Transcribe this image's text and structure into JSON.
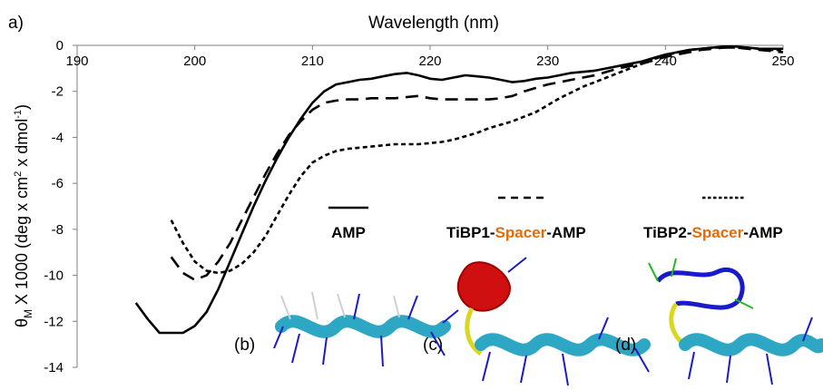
{
  "panel_labels": {
    "main": "a)",
    "b": "(b)",
    "c": "(c)",
    "d": "(d)"
  },
  "colors": {
    "axis": "#7f7f7f",
    "line": "#000000",
    "spacer": "#e36c09",
    "helix": "#2ea7c4",
    "side_chain": "#1a1acc",
    "hydrogen": "#cfcfcf",
    "loop_red": "#d01010",
    "loop_green": "#22bb22",
    "loop_yellow": "#d8d820"
  },
  "legend": [
    {
      "style": "solid",
      "parts": [
        {
          "text": "AMP",
          "color": "#000000"
        }
      ]
    },
    {
      "style": "dash",
      "parts": [
        {
          "text": "TiBP1-",
          "color": "#000000"
        },
        {
          "text": "Spacer",
          "color": "#e36c09"
        },
        {
          "text": "-AMP",
          "color": "#000000"
        }
      ]
    },
    {
      "style": "dot",
      "parts": [
        {
          "text": "TiBP2-",
          "color": "#000000"
        },
        {
          "text": "Spacer",
          "color": "#e36c09"
        },
        {
          "text": "-AMP",
          "color": "#000000"
        }
      ]
    }
  ],
  "chart_data": {
    "type": "line",
    "title": "",
    "xlabel": "Wavelength (nm)",
    "xlabel_position": "top",
    "ylabel": {
      "symbol": "θ",
      "subscript": "M",
      "rest": " X 1000  (deg x cm",
      "sup1": "2",
      "mid": " x dmol",
      "sup2": "-1",
      "end": ")"
    },
    "xlim": [
      190,
      250
    ],
    "ylim": [
      -14,
      0
    ],
    "xticks": [
      190,
      200,
      210,
      220,
      230,
      240,
      250
    ],
    "yticks": [
      0,
      -2,
      -4,
      -6,
      -8,
      -10,
      -12,
      -14
    ],
    "grid": false,
    "legend_placement": "bottom-center",
    "series": [
      {
        "name": "AMP",
        "style": "solid",
        "x": [
          195,
          196,
          197,
          198,
          199,
          200,
          201,
          202,
          203,
          204,
          205,
          206,
          207,
          208,
          209,
          210,
          211,
          212,
          213,
          214,
          215,
          216,
          217,
          218,
          219,
          220,
          221,
          222,
          223,
          224,
          225,
          226,
          227,
          228,
          229,
          230,
          231,
          232,
          233,
          234,
          235,
          236,
          237,
          238,
          239,
          240,
          241,
          242,
          243,
          244,
          245,
          246,
          247,
          248,
          249,
          250
        ],
        "y": [
          -11.2,
          -11.9,
          -12.5,
          -12.5,
          -12.5,
          -12.2,
          -11.6,
          -10.6,
          -9.4,
          -8.2,
          -7.0,
          -5.9,
          -4.9,
          -4.0,
          -3.2,
          -2.5,
          -2.0,
          -1.7,
          -1.6,
          -1.5,
          -1.45,
          -1.35,
          -1.25,
          -1.2,
          -1.3,
          -1.45,
          -1.5,
          -1.4,
          -1.3,
          -1.35,
          -1.4,
          -1.5,
          -1.6,
          -1.55,
          -1.45,
          -1.4,
          -1.3,
          -1.2,
          -1.15,
          -1.1,
          -1.0,
          -0.9,
          -0.8,
          -0.7,
          -0.55,
          -0.4,
          -0.3,
          -0.2,
          -0.15,
          -0.1,
          -0.05,
          -0.05,
          -0.1,
          -0.15,
          -0.15,
          -0.15
        ]
      },
      {
        "name": "TiBP1-Spacer-AMP",
        "style": "dash",
        "x": [
          198,
          199,
          200,
          201,
          202,
          203,
          204,
          205,
          206,
          207,
          208,
          209,
          210,
          211,
          212,
          213,
          214,
          215,
          216,
          217,
          218,
          219,
          220,
          221,
          222,
          223,
          224,
          225,
          226,
          227,
          228,
          229,
          230,
          231,
          232,
          233,
          234,
          235,
          236,
          237,
          238,
          239,
          240,
          241,
          242,
          243,
          244,
          245,
          246,
          247,
          248,
          249,
          250
        ],
        "y": [
          -9.2,
          -9.9,
          -10.2,
          -10.0,
          -9.4,
          -8.6,
          -7.6,
          -6.6,
          -5.6,
          -4.7,
          -3.9,
          -3.3,
          -2.8,
          -2.5,
          -2.4,
          -2.35,
          -2.35,
          -2.3,
          -2.3,
          -2.3,
          -2.25,
          -2.2,
          -2.3,
          -2.35,
          -2.35,
          -2.35,
          -2.35,
          -2.35,
          -2.3,
          -2.2,
          -2.0,
          -1.85,
          -1.7,
          -1.6,
          -1.5,
          -1.4,
          -1.3,
          -1.15,
          -1.0,
          -0.9,
          -0.8,
          -0.65,
          -0.5,
          -0.4,
          -0.3,
          -0.2,
          -0.15,
          -0.1,
          -0.1,
          -0.15,
          -0.2,
          -0.25,
          -0.3
        ]
      },
      {
        "name": "TiBP2-Spacer-AMP",
        "style": "dot",
        "x": [
          198,
          199,
          200,
          201,
          202,
          203,
          204,
          205,
          206,
          207,
          208,
          209,
          210,
          211,
          212,
          213,
          214,
          215,
          216,
          217,
          218,
          219,
          220,
          221,
          222,
          223,
          224,
          225,
          226,
          227,
          228,
          229,
          230,
          231,
          232,
          233,
          234,
          235,
          236,
          237,
          238,
          239,
          240,
          241,
          242,
          243,
          244,
          245,
          246,
          247,
          248,
          249,
          250
        ],
        "y": [
          -7.6,
          -8.6,
          -9.4,
          -9.8,
          -9.9,
          -9.8,
          -9.5,
          -9.0,
          -8.3,
          -7.4,
          -6.5,
          -5.7,
          -5.1,
          -4.8,
          -4.6,
          -4.5,
          -4.45,
          -4.4,
          -4.35,
          -4.3,
          -4.3,
          -4.3,
          -4.25,
          -4.2,
          -4.1,
          -3.95,
          -3.8,
          -3.6,
          -3.45,
          -3.3,
          -3.1,
          -2.9,
          -2.6,
          -2.3,
          -2.05,
          -1.8,
          -1.6,
          -1.4,
          -1.2,
          -1.0,
          -0.8,
          -0.6,
          -0.45,
          -0.3,
          -0.2,
          -0.15,
          -0.1,
          -0.1,
          -0.1,
          -0.1,
          -0.15,
          -0.2,
          -0.2
        ]
      }
    ]
  }
}
